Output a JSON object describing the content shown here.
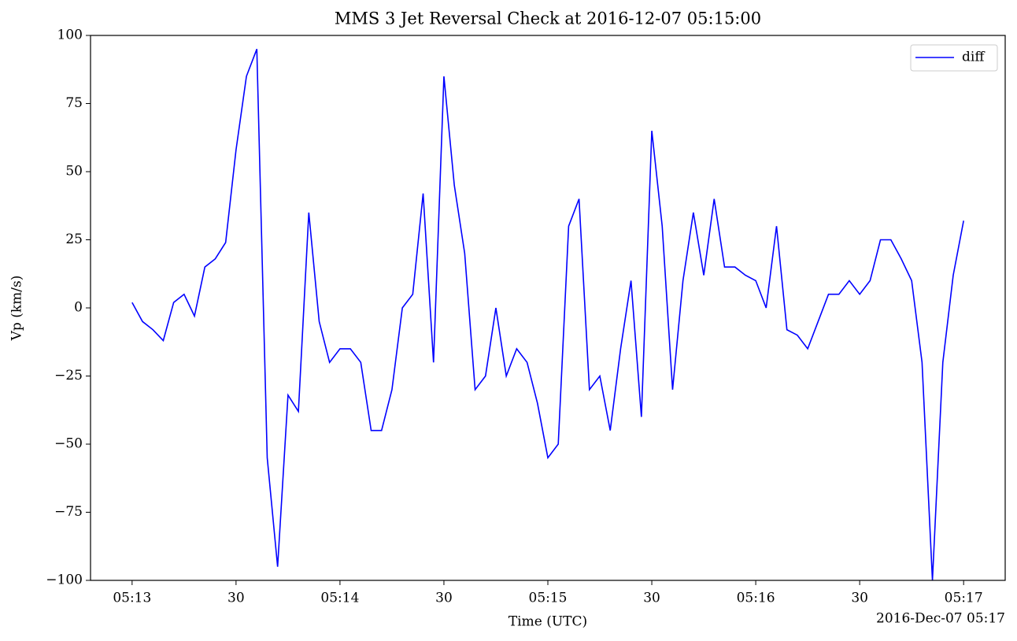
{
  "chart_data": {
    "type": "line",
    "title": "MMS 3 Jet Reversal Check at 2016-12-07 05:15:00",
    "x_label": "Time (UTC)",
    "y_label": "Vp (km/s)",
    "x_offset_label": "2016-Dec-07 05:17",
    "x": [
      "05:13:00",
      "05:13:03",
      "05:13:06",
      "05:13:09",
      "05:13:12",
      "05:13:15",
      "05:13:18",
      "05:13:21",
      "05:13:24",
      "05:13:27",
      "05:13:30",
      "05:13:33",
      "05:13:36",
      "05:13:39",
      "05:13:42",
      "05:13:45",
      "05:13:48",
      "05:13:51",
      "05:13:54",
      "05:13:57",
      "05:14:00",
      "05:14:03",
      "05:14:06",
      "05:14:09",
      "05:14:12",
      "05:14:15",
      "05:14:18",
      "05:14:21",
      "05:14:24",
      "05:14:27",
      "05:14:30",
      "05:14:33",
      "05:14:36",
      "05:14:39",
      "05:14:42",
      "05:14:45",
      "05:14:48",
      "05:14:51",
      "05:14:54",
      "05:14:57",
      "05:15:00",
      "05:15:03",
      "05:15:06",
      "05:15:09",
      "05:15:12",
      "05:15:15",
      "05:15:18",
      "05:15:21",
      "05:15:24",
      "05:15:27",
      "05:15:30",
      "05:15:33",
      "05:15:36",
      "05:15:39",
      "05:15:42",
      "05:15:45",
      "05:15:48",
      "05:15:51",
      "05:15:54",
      "05:15:57",
      "05:16:00",
      "05:16:03",
      "05:16:06",
      "05:16:09",
      "05:16:12",
      "05:16:15",
      "05:16:18",
      "05:16:21",
      "05:16:24",
      "05:16:27",
      "05:16:30",
      "05:16:33",
      "05:16:36",
      "05:16:39",
      "05:16:42",
      "05:16:45",
      "05:16:48",
      "05:16:51",
      "05:16:54",
      "05:16:57",
      "05:17:00"
    ],
    "series": [
      {
        "name": "diff",
        "color": "#0000ff",
        "values": [
          2,
          -5,
          -8,
          -12,
          2,
          5,
          -3,
          15,
          18,
          24,
          58,
          85,
          95,
          -55,
          -95,
          -32,
          -38,
          35,
          -5,
          -20,
          -15,
          -15,
          -20,
          -45,
          -45,
          -30,
          0,
          5,
          42,
          -20,
          85,
          45,
          20,
          -30,
          -25,
          0,
          -25,
          -15,
          -20,
          -35,
          -55,
          -50,
          30,
          40,
          -30,
          -25,
          -45,
          -15,
          10,
          -40,
          65,
          30,
          -30,
          10,
          35,
          12,
          40,
          15,
          15,
          12,
          10,
          0,
          30,
          -8,
          -10,
          -15,
          -5,
          5,
          5,
          10,
          5,
          10,
          25,
          25,
          18,
          10,
          -20,
          -100,
          -20,
          12,
          32
        ]
      }
    ],
    "xlim": [
      "05:12:48",
      "05:17:12"
    ],
    "xticks": [
      {
        "value": "05:13:00",
        "label": "05:13"
      },
      {
        "value": "05:13:30",
        "label": "30"
      },
      {
        "value": "05:14:00",
        "label": "05:14"
      },
      {
        "value": "05:14:30",
        "label": "30"
      },
      {
        "value": "05:15:00",
        "label": "05:15"
      },
      {
        "value": "05:15:30",
        "label": "30"
      },
      {
        "value": "05:16:00",
        "label": "05:16"
      },
      {
        "value": "05:16:30",
        "label": "30"
      },
      {
        "value": "05:17:00",
        "label": "05:17"
      }
    ],
    "ylim": [
      -100,
      100
    ],
    "yticks": [
      {
        "value": -100,
        "label": "−100"
      },
      {
        "value": -75,
        "label": "−75"
      },
      {
        "value": -50,
        "label": "−50"
      },
      {
        "value": -25,
        "label": "−25"
      },
      0,
      25,
      50,
      75,
      100
    ],
    "legend": "upper right"
  }
}
